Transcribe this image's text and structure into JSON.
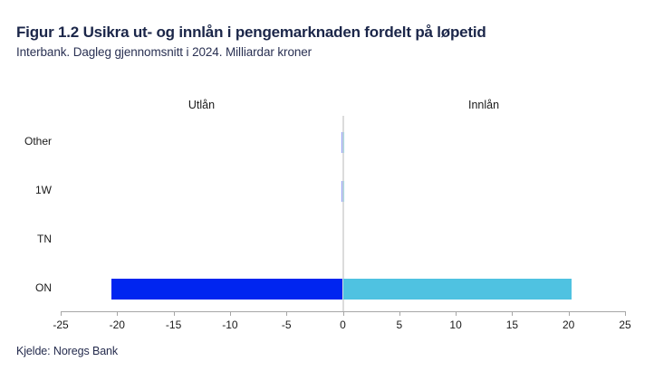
{
  "header": {
    "title": "Figur 1.2 Usikra ut- og innlån i pengemarknaden fordelt på løpetid",
    "subtitle": "Interbank. Dagleg gjennomsnitt i 2024. Milliardar kroner"
  },
  "footer": {
    "source": "Kjelde: Noregs Bank"
  },
  "colors": {
    "title_navy": "#1b2649",
    "utlan_blue": "#0025f0",
    "innlan_cyan": "#4fc2e1",
    "axis_gray": "#a6a6a6",
    "zero_line_gray": "#dcdcdc",
    "label_black": "#1a1a1a"
  },
  "chart_data": {
    "type": "bar",
    "orientation": "horizontal-diverging",
    "title": "Figur 1.2 Usikra ut- og innlån i pengemarknaden fordelt på løpetid",
    "subtitle": "Interbank. Dagleg gjennomsnitt i 2024. Milliardar kroner",
    "xlabel": "Milliardar kroner",
    "categories": [
      "Other",
      "1W",
      "TN",
      "ON"
    ],
    "series": [
      {
        "name": "Utlån",
        "color": "#0025f0",
        "values": [
          -0.1,
          -0.1,
          0,
          -20.5
        ]
      },
      {
        "name": "Innlån",
        "color": "#4fc2e1",
        "values": [
          0.1,
          0.1,
          0,
          20.3
        ]
      }
    ],
    "xlim": [
      -25,
      25
    ],
    "xticks": [
      -25,
      -20,
      -15,
      -10,
      -5,
      0,
      5,
      10,
      15,
      20,
      25
    ],
    "grid": false,
    "legend_position": "column-headers",
    "source": "Kjelde: Noregs Bank"
  }
}
